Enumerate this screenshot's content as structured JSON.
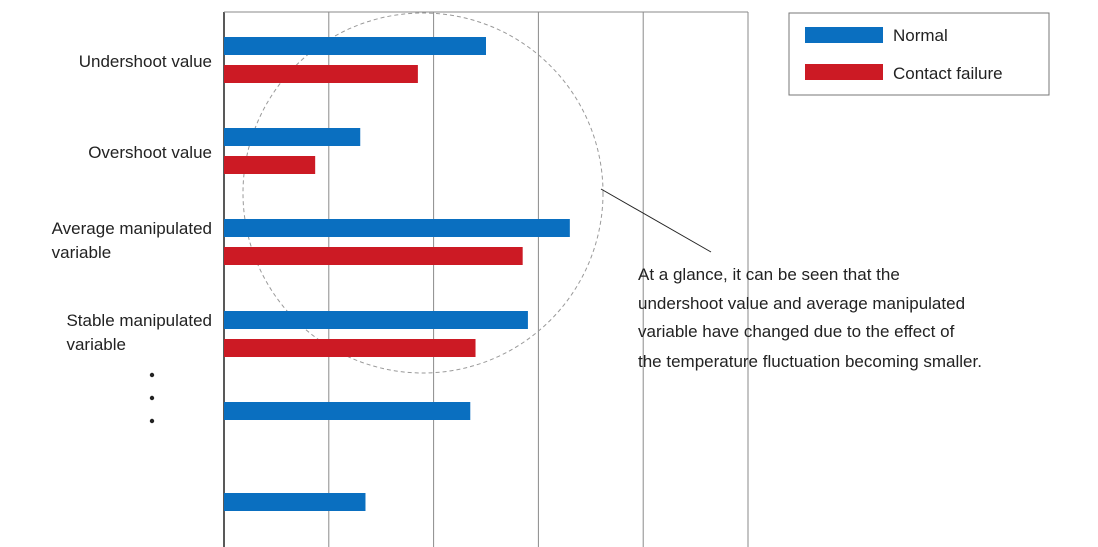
{
  "chart_data": {
    "type": "bar",
    "orientation": "horizontal",
    "categories": [
      "Undershoot value",
      "Overshoot value",
      "Average manipulated variable",
      "Stable manipulated variable",
      "",
      ""
    ],
    "series": [
      {
        "name": "Normal",
        "color": "#0a6fc0",
        "values": [
          2.5,
          1.3,
          3.3,
          2.9,
          2.35,
          1.35
        ]
      },
      {
        "name": "Contact failure",
        "color": "#cc1a24",
        "values": [
          1.85,
          0.87,
          2.85,
          2.4,
          null,
          null
        ]
      }
    ],
    "xlim": [
      0,
      5
    ],
    "grid": true,
    "legend_position": "top-right",
    "ellipsis": "vertical-dots",
    "annotation": {
      "lines": [
        "At a glance, it can be seen that the",
        "undershoot value and average manipulated",
        "variable have changed due to the effect of",
        "the temperature fluctuation becoming smaller."
      ]
    }
  }
}
